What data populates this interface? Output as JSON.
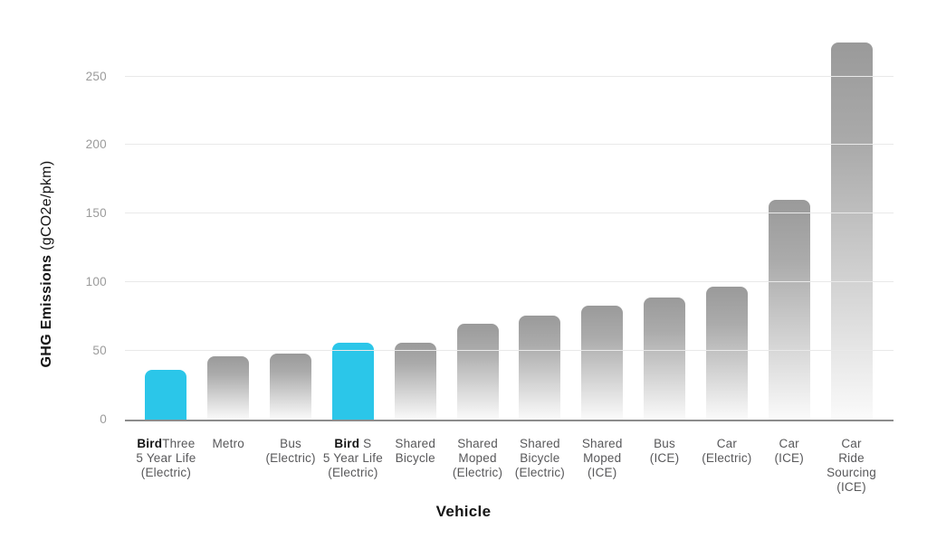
{
  "chart_data": {
    "type": "bar",
    "title": "",
    "xlabel": "Vehicle",
    "ylabel": "GHG Emissions (gCO2e/pkm)",
    "ylabel_bold": "GHG Emissions",
    "ylabel_unit": " (gCO2e/pkm)",
    "ylim": [
      0,
      280
    ],
    "yticks": [
      0,
      50,
      100,
      150,
      200,
      250
    ],
    "grid": "horizontal-only",
    "legend": "none",
    "bold_prefix": "Bird",
    "categories": [
      "BirdThree\n5 Year Life\n(Electric)",
      "Metro",
      "Bus\n(Electric)",
      "Bird S\n5 Year Life\n(Electric)",
      "Shared\nBicycle",
      "Shared\nMoped\n(Electric)",
      "Shared\nBicycle\n(Electric)",
      "Shared\nMoped\n(ICE)",
      "Bus\n(ICE)",
      "Car\n(Electric)",
      "Car\n(ICE)",
      "Car\nRide\nSourcing\n(ICE)"
    ],
    "values": [
      36,
      46,
      48,
      56,
      56,
      70,
      76,
      83,
      89,
      97,
      160,
      275
    ],
    "highlight_indices": [
      0,
      3
    ],
    "colors": {
      "highlight_bar": "#2bc6e9",
      "bar_gradient_top": "#9a9a9a",
      "bar_gradient_bottom": "#fbfbfb",
      "gridline": "#e9e9e9",
      "axis_line": "#8c8c8c",
      "tick_label": "#9b9b9b",
      "category_label": "#58585a",
      "title_text": "#141414"
    }
  }
}
